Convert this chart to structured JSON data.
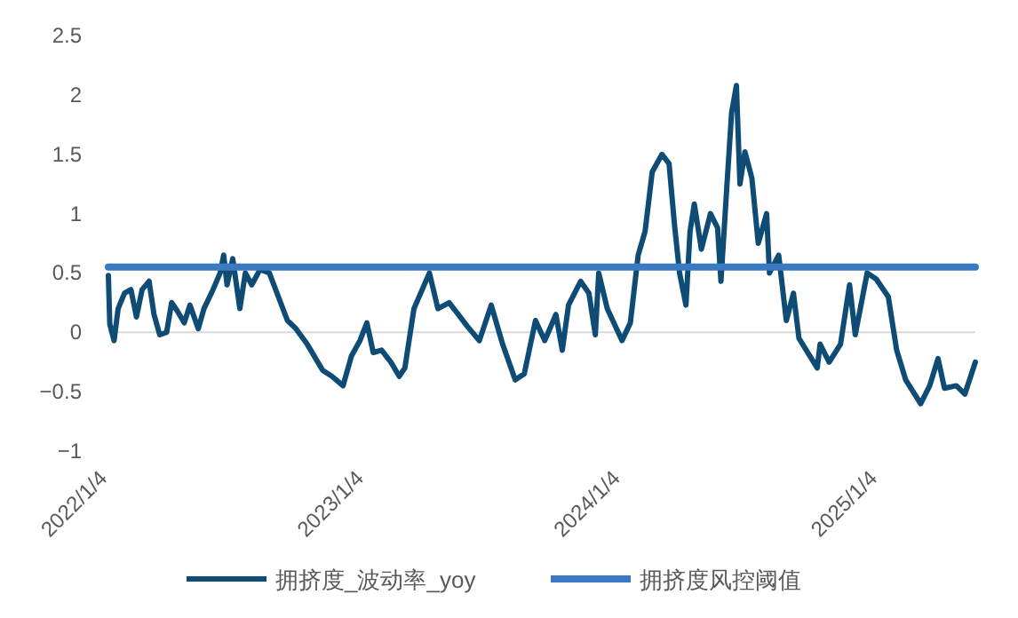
{
  "chart_data": {
    "type": "line",
    "xlim": [
      "2022-01-04",
      "2025-05-22"
    ],
    "ylim": [
      -1,
      2.5
    ],
    "yticks": [
      {
        "value": -1,
        "label": "−1"
      },
      {
        "value": -0.5,
        "label": "−0.5"
      },
      0,
      0.5,
      1,
      1.5,
      2,
      2.5
    ],
    "xticks": [
      {
        "value": "2022-01-04",
        "label": "2022/1/4"
      },
      {
        "value": "2023-01-04",
        "label": "2023/1/4"
      },
      {
        "value": "2024-01-04",
        "label": "2024/1/4"
      },
      {
        "value": "2025-01-04",
        "label": "2025/1/4"
      }
    ],
    "grid": false,
    "legend": "bottom",
    "line_style": "solid",
    "ref_lines": [
      {
        "axis": "y",
        "value": 0,
        "color": "#d9d9d9"
      }
    ],
    "series": [
      {
        "name": "拥挤度_波动率_yoy",
        "color": "#0f4c75",
        "x": [
          "2022-01-04",
          "2022-01-06",
          "2022-01-12",
          "2022-01-18",
          "2022-01-27",
          "2022-02-05",
          "2022-02-13",
          "2022-02-21",
          "2022-03-03",
          "2022-03-10",
          "2022-03-18",
          "2022-03-28",
          "2022-04-04",
          "2022-04-12",
          "2022-04-22",
          "2022-04-30",
          "2022-05-12",
          "2022-05-20",
          "2022-06-02",
          "2022-06-12",
          "2022-06-17",
          "2022-06-22",
          "2022-06-30",
          "2022-07-10",
          "2022-07-18",
          "2022-07-27",
          "2022-08-08",
          "2022-08-21",
          "2022-09-03",
          "2022-09-16",
          "2022-09-28",
          "2022-10-14",
          "2022-11-05",
          "2022-11-18",
          "2022-12-04",
          "2022-12-16",
          "2022-12-28",
          "2023-01-07",
          "2023-01-16",
          "2023-01-28",
          "2023-02-10",
          "2023-02-22",
          "2023-03-02",
          "2023-03-15",
          "2023-04-06",
          "2023-04-18",
          "2023-05-04",
          "2023-05-30",
          "2023-06-16",
          "2023-07-03",
          "2023-07-19",
          "2023-08-06",
          "2023-08-19",
          "2023-09-04",
          "2023-09-17",
          "2023-10-03",
          "2023-10-12",
          "2023-10-21",
          "2023-11-07",
          "2023-11-19",
          "2023-11-28",
          "2023-12-03",
          "2023-12-15",
          "2024-01-05",
          "2024-01-17",
          "2024-01-28",
          "2024-02-07",
          "2024-02-17",
          "2024-03-02",
          "2024-03-12",
          "2024-03-20",
          "2024-03-27",
          "2024-04-05",
          "2024-04-11",
          "2024-04-17",
          "2024-04-27",
          "2024-05-10",
          "2024-05-20",
          "2024-05-25",
          "2024-06-02",
          "2024-06-09",
          "2024-06-16",
          "2024-06-21",
          "2024-06-28",
          "2024-07-08",
          "2024-07-17",
          "2024-07-29",
          "2024-08-02",
          "2024-08-15",
          "2024-08-26",
          "2024-09-05",
          "2024-09-13",
          "2024-10-09",
          "2024-10-13",
          "2024-10-26",
          "2024-11-11",
          "2024-11-24",
          "2024-12-02",
          "2024-12-19",
          "2025-01-01",
          "2025-01-18",
          "2025-01-30",
          "2025-02-12",
          "2025-03-05",
          "2025-03-18",
          "2025-03-30",
          "2025-04-08",
          "2025-04-25",
          "2025-05-07",
          "2025-05-22"
        ],
        "values": [
          0.48,
          0.07,
          -0.07,
          0.2,
          0.33,
          0.36,
          0.13,
          0.36,
          0.43,
          0.15,
          -0.02,
          0,
          0.25,
          0.18,
          0.08,
          0.23,
          0.03,
          0.2,
          0.36,
          0.5,
          0.65,
          0.4,
          0.62,
          0.2,
          0.5,
          0.4,
          0.53,
          0.5,
          0.3,
          0.1,
          0.03,
          -0.1,
          -0.32,
          -0.37,
          -0.45,
          -0.2,
          -0.07,
          0.08,
          -0.17,
          -0.15,
          -0.25,
          -0.37,
          -0.3,
          0.2,
          0.5,
          0.2,
          0.25,
          0.05,
          -0.07,
          0.23,
          -0.1,
          -0.4,
          -0.35,
          0.1,
          -0.07,
          0.15,
          -0.15,
          0.23,
          0.43,
          0.33,
          -0.02,
          0.5,
          0.2,
          -0.07,
          0.08,
          0.65,
          0.85,
          1.35,
          1.5,
          1.42,
          0.9,
          0.5,
          0.23,
          0.85,
          1.08,
          0.7,
          1.0,
          0.88,
          0.43,
          1.2,
          1.85,
          2.08,
          1.25,
          1.52,
          1.3,
          0.75,
          1.0,
          0.5,
          0.65,
          0.1,
          0.33,
          -0.05,
          -0.3,
          -0.1,
          -0.25,
          -0.1,
          0.4,
          -0.02,
          0.5,
          0.45,
          0.3,
          -0.15,
          -0.4,
          -0.6,
          -0.45,
          -0.22,
          -0.47,
          -0.45,
          -0.52,
          -0.25
        ]
      },
      {
        "name": "拥挤度风控阈值",
        "color": "#3b7ac2",
        "x": [
          "2022-01-04",
          "2025-05-22"
        ],
        "values": [
          0.55,
          0.55
        ]
      }
    ]
  }
}
